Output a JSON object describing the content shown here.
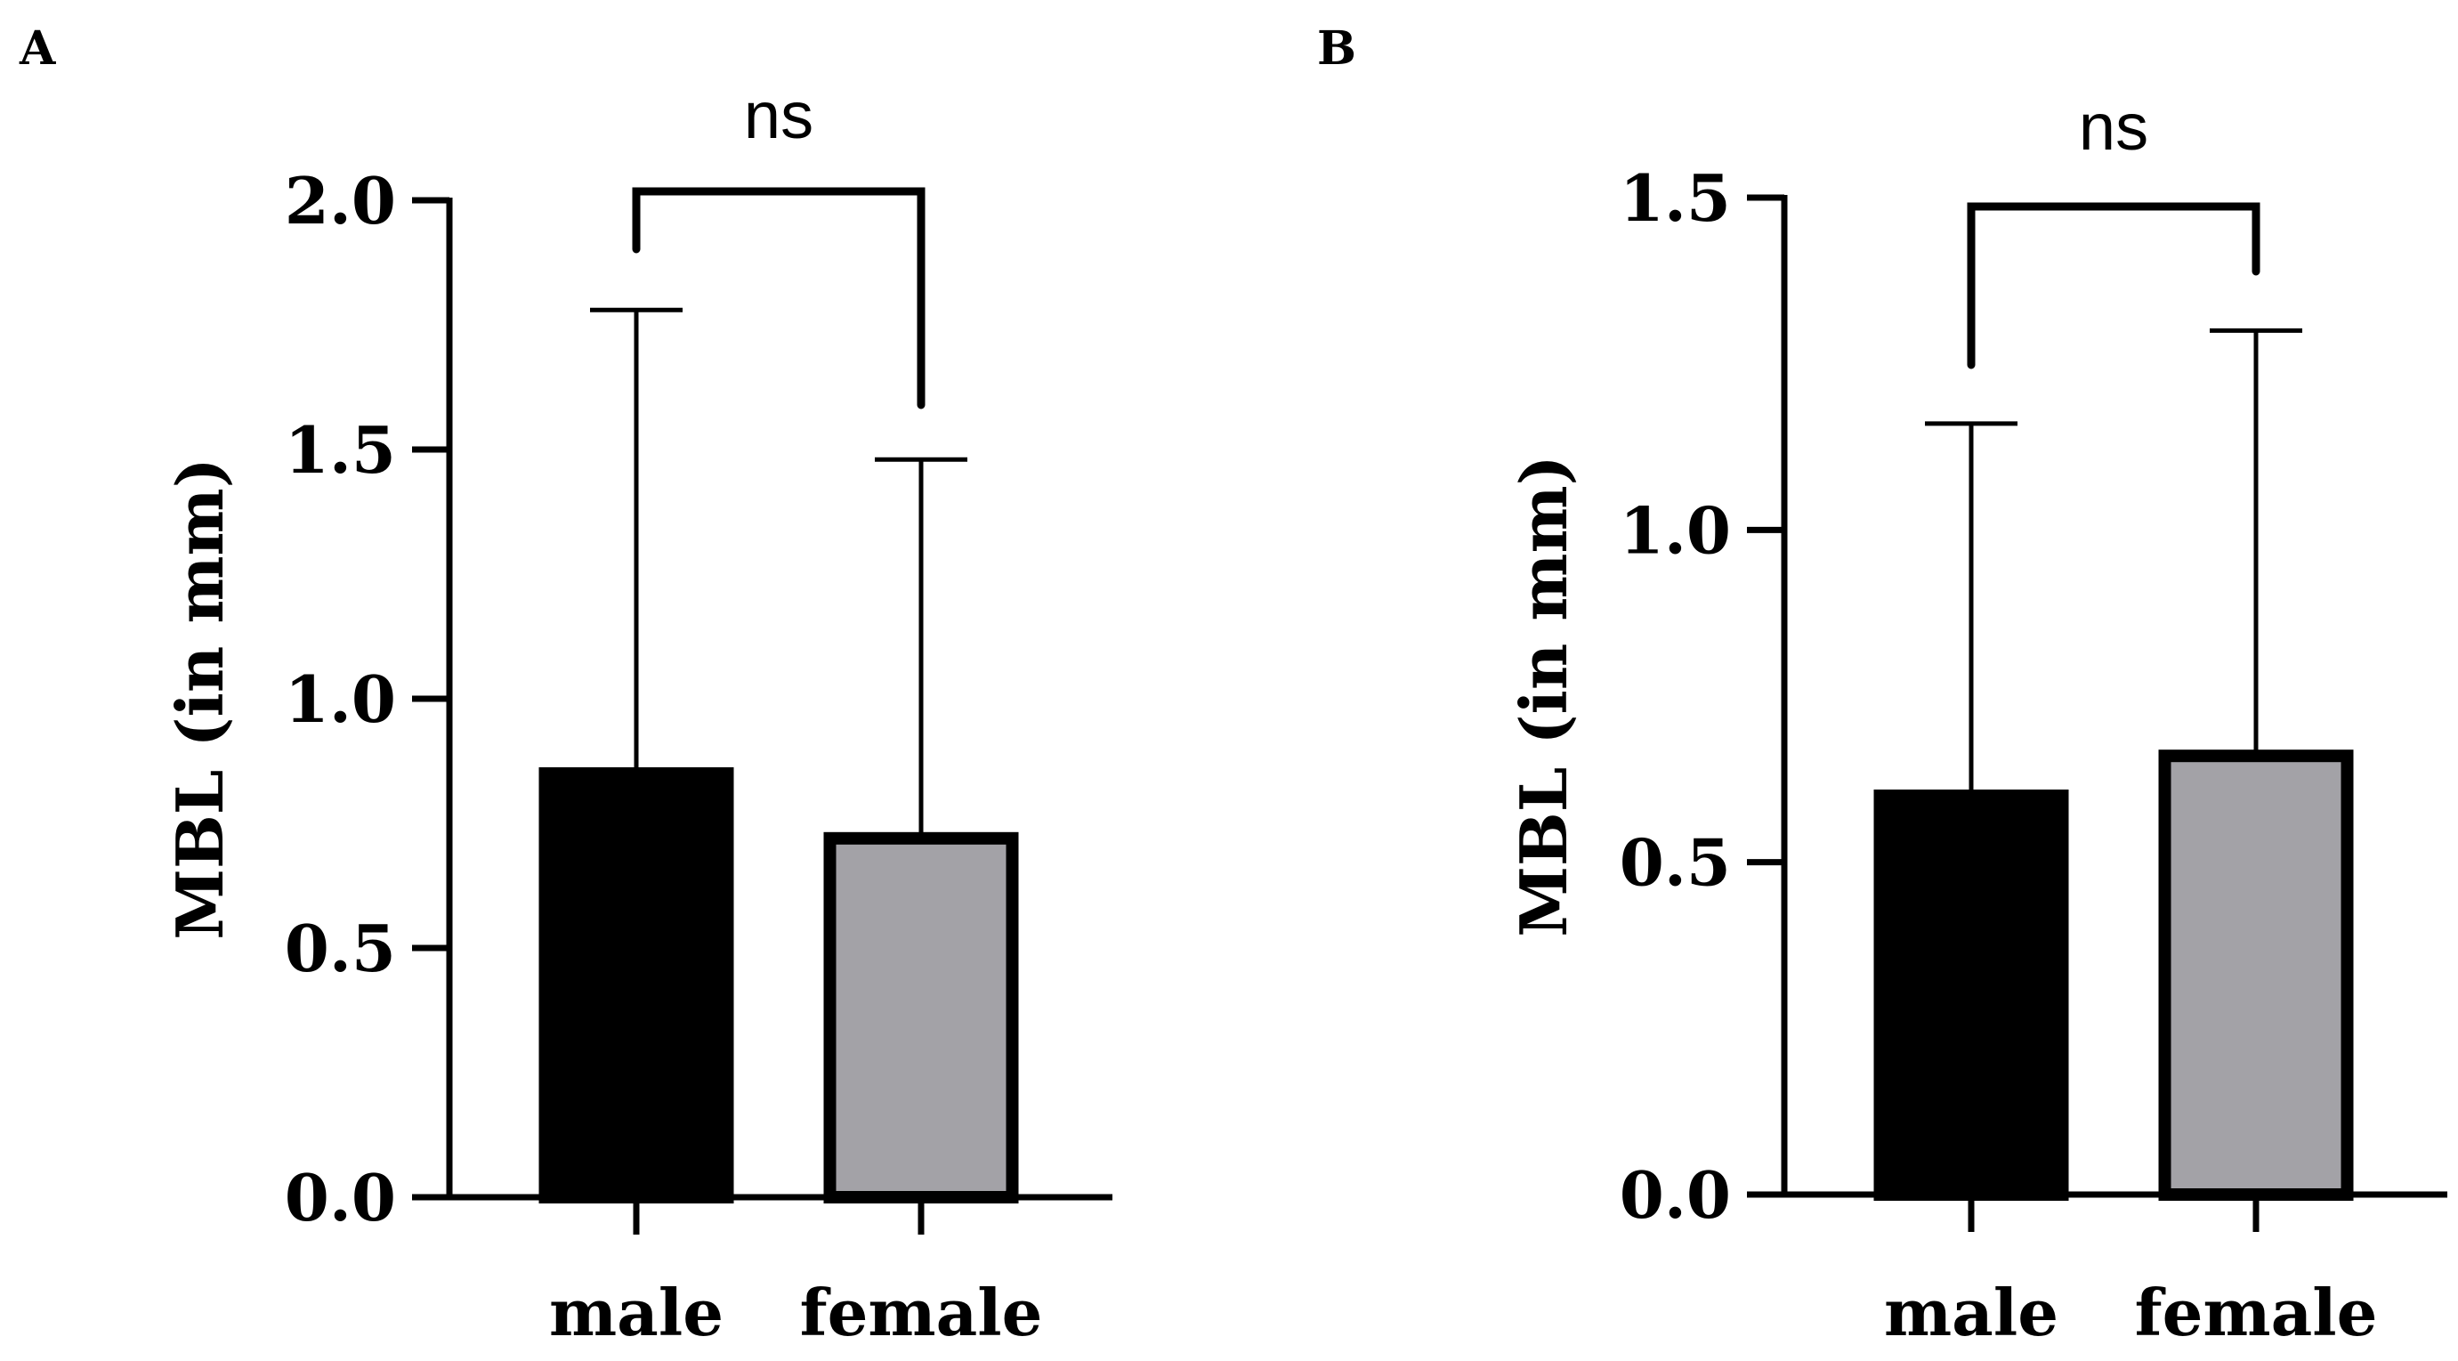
{
  "chart_data": [
    {
      "panel": "A",
      "type": "bar",
      "categories": [
        "male",
        "female"
      ],
      "values": [
        0.85,
        0.72
      ],
      "error_upper": [
        1.78,
        1.48
      ],
      "bar_colors": [
        "#000000",
        "#a3a2a7"
      ],
      "ylabel": "MBL (in mm)",
      "ylim": [
        0.0,
        2.0
      ],
      "yticks": [
        0.0,
        0.5,
        1.0,
        1.5,
        2.0
      ],
      "ytick_labels": [
        "0.0",
        "0.5",
        "1.0",
        "1.5",
        "2.0"
      ],
      "significance": {
        "label": "ns",
        "between": [
          "male",
          "female"
        ]
      }
    },
    {
      "panel": "B",
      "type": "bar",
      "categories": [
        "male",
        "female"
      ],
      "values": [
        0.6,
        0.66
      ],
      "error_upper": [
        1.16,
        1.3
      ],
      "bar_colors": [
        "#000000",
        "#a3a2a7"
      ],
      "ylabel": "MBL (in mm)",
      "ylim": [
        0.0,
        1.5
      ],
      "yticks": [
        0.0,
        0.5,
        1.0,
        1.5
      ],
      "ytick_labels": [
        "0.0",
        "0.5",
        "1.0",
        "1.5"
      ],
      "significance": {
        "label": "ns",
        "between": [
          "male",
          "female"
        ]
      }
    }
  ]
}
